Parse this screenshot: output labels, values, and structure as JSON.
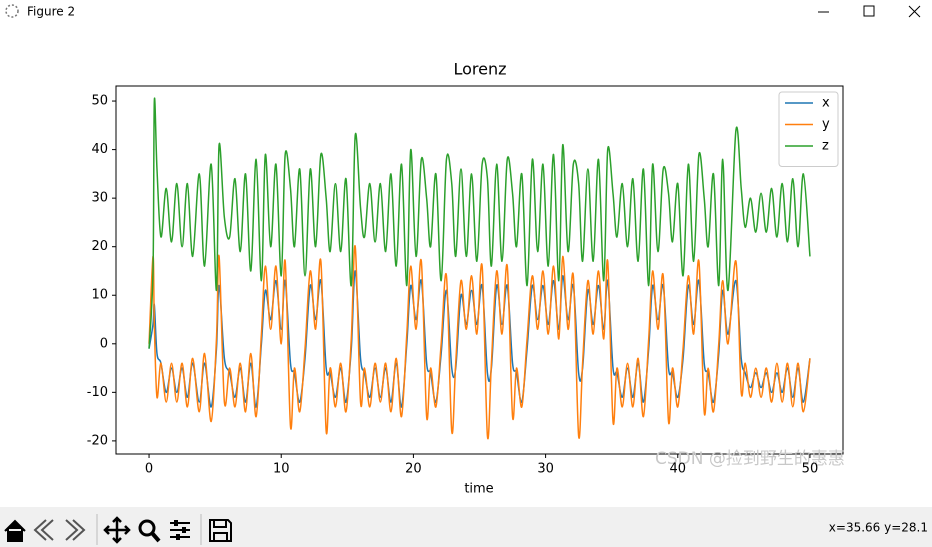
{
  "window": {
    "title": "Figure 2"
  },
  "chart_data": {
    "type": "line",
    "title": "Lorenz",
    "xlabel": "time",
    "x": [
      0,
      0.3,
      0.4,
      0.6,
      0.9,
      1.3,
      1.7,
      2.1,
      2.5,
      2.9,
      3.3,
      3.8,
      4.2,
      4.7,
      5.1,
      5.3,
      5.7,
      6.1,
      6.5,
      6.9,
      7.3,
      7.7,
      8.1,
      8.5,
      8.8,
      9.2,
      9.6,
      10.0,
      10.3,
      10.7,
      11.0,
      11.4,
      11.8,
      12.2,
      12.6,
      13.0,
      13.4,
      13.7,
      14.1,
      14.5,
      14.9,
      15.3,
      15.6,
      16.0,
      16.3,
      16.7,
      17.1,
      17.5,
      17.9,
      18.3,
      18.7,
      19.1,
      19.5,
      19.8,
      20.2,
      20.6,
      21.0,
      21.3,
      21.7,
      22.1,
      22.5,
      22.9,
      23.2,
      23.6,
      24.0,
      24.4,
      24.8,
      25.2,
      25.6,
      25.9,
      26.3,
      26.7,
      27.1,
      27.5,
      27.8,
      28.2,
      28.6,
      29.0,
      29.4,
      29.8,
      30.2,
      30.6,
      31.0,
      31.3,
      31.7,
      32.1,
      32.5,
      32.8,
      33.2,
      33.6,
      34.0,
      34.4,
      34.7,
      35.1,
      35.4,
      35.8,
      36.2,
      36.6,
      37.0,
      37.4,
      37.8,
      38.1,
      38.5,
      38.9,
      39.3,
      39.6,
      40.0,
      40.4,
      40.8,
      41.2,
      41.6,
      42.0,
      42.3,
      42.7,
      43.1,
      43.4,
      43.8,
      44.4,
      44.8,
      45.1,
      45.5,
      45.9,
      46.3,
      46.7,
      47.1,
      47.5,
      47.9,
      48.3,
      48.7,
      49.1,
      49.5,
      50.0
    ],
    "series": [
      {
        "name": "x",
        "color": "#1f77b4",
        "values": [
          -1,
          4,
          8,
          -2,
          -4,
          -10,
          -5,
          -10,
          -5,
          -11,
          -4,
          -12,
          -4,
          -13,
          -1,
          12,
          -3,
          -6,
          -11,
          -5,
          -12,
          -4,
          -13,
          0,
          11,
          5,
          13,
          3,
          13,
          -4,
          -6,
          -12,
          -3,
          12,
          5,
          13,
          -5,
          -6,
          -11,
          -5,
          -12,
          -1,
          15,
          -3,
          -6,
          -11,
          -5,
          -11,
          -5,
          -12,
          -4,
          -13,
          0,
          12,
          5,
          13,
          -4,
          -6,
          -12,
          -2,
          11,
          -5,
          -5,
          10,
          4,
          11,
          4,
          12,
          -6,
          -5,
          12,
          4,
          12,
          -4,
          -6,
          -12,
          -1,
          12,
          5,
          12,
          4,
          13,
          3,
          14,
          5,
          12,
          -6,
          -5,
          11,
          4,
          12,
          3,
          13,
          -5,
          -6,
          -11,
          -5,
          -11,
          -4,
          -12,
          -1,
          12,
          5,
          12,
          -5,
          -6,
          -11,
          -3,
          12,
          4,
          13,
          -4,
          -6,
          -12,
          -2,
          11,
          2,
          13,
          -3,
          -6,
          -9,
          -6,
          -9,
          -6,
          -10,
          -6,
          -10,
          -5,
          -11,
          -5,
          -12,
          -3
        ]
      },
      {
        "name": "y",
        "color": "#ff7f0e",
        "values": [
          0,
          18,
          4,
          -11,
          -4,
          -12,
          -4,
          -12,
          -4,
          -13,
          -3,
          -14,
          -2,
          -16,
          1,
          18,
          -12,
          -5,
          -13,
          -4,
          -14,
          -2,
          -15,
          2,
          16,
          3,
          16,
          0,
          17,
          -17,
          -5,
          -14,
          -1,
          15,
          3,
          17,
          -18,
          -5,
          -13,
          -4,
          -14,
          1,
          20,
          -12,
          -5,
          -13,
          -4,
          -12,
          -4,
          -14,
          -3,
          -15,
          2,
          16,
          3,
          17,
          -15,
          -5,
          -13,
          0,
          14,
          -18,
          -4,
          13,
          3,
          14,
          2,
          16,
          -19,
          -4,
          15,
          2,
          16,
          -15,
          -5,
          -13,
          1,
          14,
          3,
          15,
          2,
          16,
          1,
          18,
          3,
          14,
          -19,
          -4,
          13,
          2,
          15,
          1,
          17,
          -16,
          -5,
          -13,
          -4,
          -13,
          -3,
          -15,
          1,
          15,
          3,
          14,
          -16,
          -5,
          -13,
          -1,
          14,
          2,
          17,
          -14,
          -5,
          -14,
          0,
          13,
          0,
          17,
          -10,
          -4,
          -11,
          -5,
          -11,
          -5,
          -12,
          -4,
          -12,
          -4,
          -13,
          -4,
          -14,
          -3
        ]
      },
      {
        "name": "z",
        "color": "#2ca02c",
        "values": [
          -1,
          15,
          50,
          36,
          22,
          32,
          21,
          33,
          20,
          33,
          18,
          35,
          16,
          37,
          11,
          41,
          26,
          22,
          34,
          19,
          35,
          15,
          38,
          13,
          39,
          20,
          37,
          14,
          39,
          32,
          20,
          36,
          14,
          36,
          20,
          39,
          30,
          19,
          33,
          19,
          34,
          12,
          43,
          28,
          22,
          33,
          21,
          33,
          19,
          35,
          16,
          37,
          12,
          40,
          18,
          38,
          30,
          20,
          35,
          13,
          38,
          33,
          18,
          36,
          18,
          35,
          17,
          37,
          34,
          16,
          37,
          17,
          38,
          31,
          20,
          35,
          12,
          38,
          19,
          37,
          16,
          39,
          13,
          41,
          19,
          37,
          33,
          17,
          36,
          17,
          38,
          13,
          40,
          31,
          22,
          33,
          20,
          34,
          17,
          36,
          12,
          37,
          19,
          36,
          31,
          21,
          33,
          14,
          37,
          17,
          39,
          30,
          20,
          35,
          12,
          38,
          11,
          44,
          32,
          24,
          30,
          23,
          31,
          23,
          32,
          22,
          33,
          21,
          34,
          20,
          35,
          18
        ]
      }
    ],
    "xlim": [
      -2.5,
      52.5
    ],
    "ylim": [
      -22.7,
      53.1
    ],
    "xticks": [
      0,
      10,
      20,
      30,
      40,
      50
    ],
    "yticks": [
      -20,
      -10,
      0,
      10,
      20,
      30,
      40,
      50
    ],
    "legend": "upper right",
    "grid": false
  },
  "watermark": "CSDN @捡到野生的惠惠",
  "status": "x=35.66 y=28.1"
}
